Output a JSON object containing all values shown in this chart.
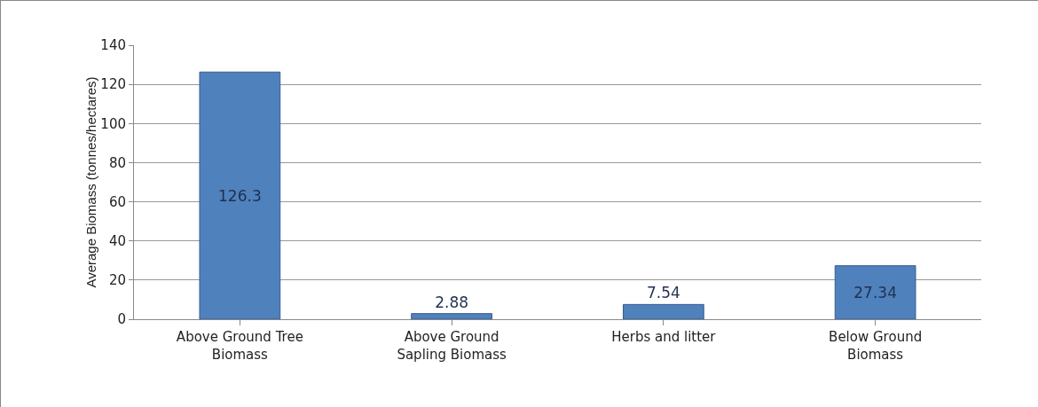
{
  "chart_data": {
    "type": "bar",
    "ylabel": "Average Biomass (tonnes/hectares)",
    "categories": [
      "Above Ground Tree Biomass",
      "Above Ground Sapling Biomass",
      "Herbs and litter",
      "Below Ground Biomass"
    ],
    "values": [
      126.3,
      2.88,
      7.54,
      27.34
    ],
    "color": "#4f81bd",
    "ylim": [
      0,
      140
    ],
    "yticks": [
      0,
      20,
      40,
      60,
      80,
      100,
      120,
      140
    ],
    "grid": "y",
    "data_labels": true
  }
}
